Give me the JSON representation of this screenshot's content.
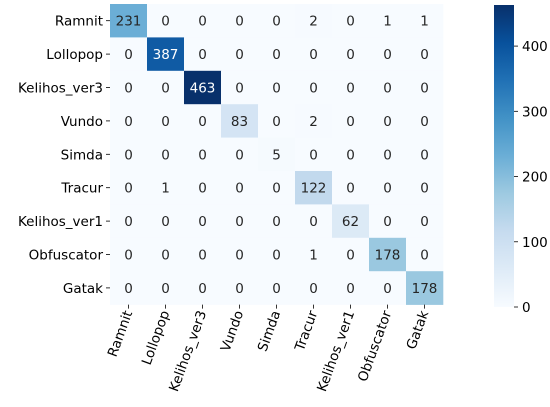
{
  "chart_data": {
    "type": "heatmap",
    "title": "",
    "xlabel": "",
    "ylabel": "",
    "row_labels": [
      "Ramnit",
      "Lollopop",
      "Kelihos_ver3",
      "Vundo",
      "Simda",
      "Tracur",
      "Kelihos_ver1",
      "Obfuscator",
      "Gatak"
    ],
    "col_labels": [
      "Ramnit",
      "Lollopop",
      "Kelihos_ver3",
      "Vundo",
      "Simda",
      "Tracur",
      "Kelihos_ver1",
      "Obfuscator",
      "Gatak"
    ],
    "values": [
      [
        231,
        0,
        0,
        0,
        0,
        2,
        0,
        1,
        1
      ],
      [
        0,
        387,
        0,
        0,
        0,
        0,
        0,
        0,
        0
      ],
      [
        0,
        0,
        463,
        0,
        0,
        0,
        0,
        0,
        0
      ],
      [
        0,
        0,
        0,
        83,
        0,
        2,
        0,
        0,
        0
      ],
      [
        0,
        0,
        0,
        0,
        5,
        0,
        0,
        0,
        0
      ],
      [
        0,
        1,
        0,
        0,
        0,
        122,
        0,
        0,
        0
      ],
      [
        0,
        0,
        0,
        0,
        0,
        0,
        62,
        0,
        0
      ],
      [
        0,
        0,
        0,
        0,
        0,
        1,
        0,
        178,
        0
      ],
      [
        0,
        0,
        0,
        0,
        0,
        0,
        0,
        0,
        178
      ]
    ],
    "colormap": "Blues",
    "vmin": 0,
    "vmax": 463,
    "colorbar": {
      "ticks": [
        0,
        100,
        200,
        300,
        400
      ],
      "tick_labels": [
        "0",
        "100",
        "200",
        "300",
        "400"
      ]
    },
    "x_tick_rotation_deg": 70,
    "grid": false
  }
}
